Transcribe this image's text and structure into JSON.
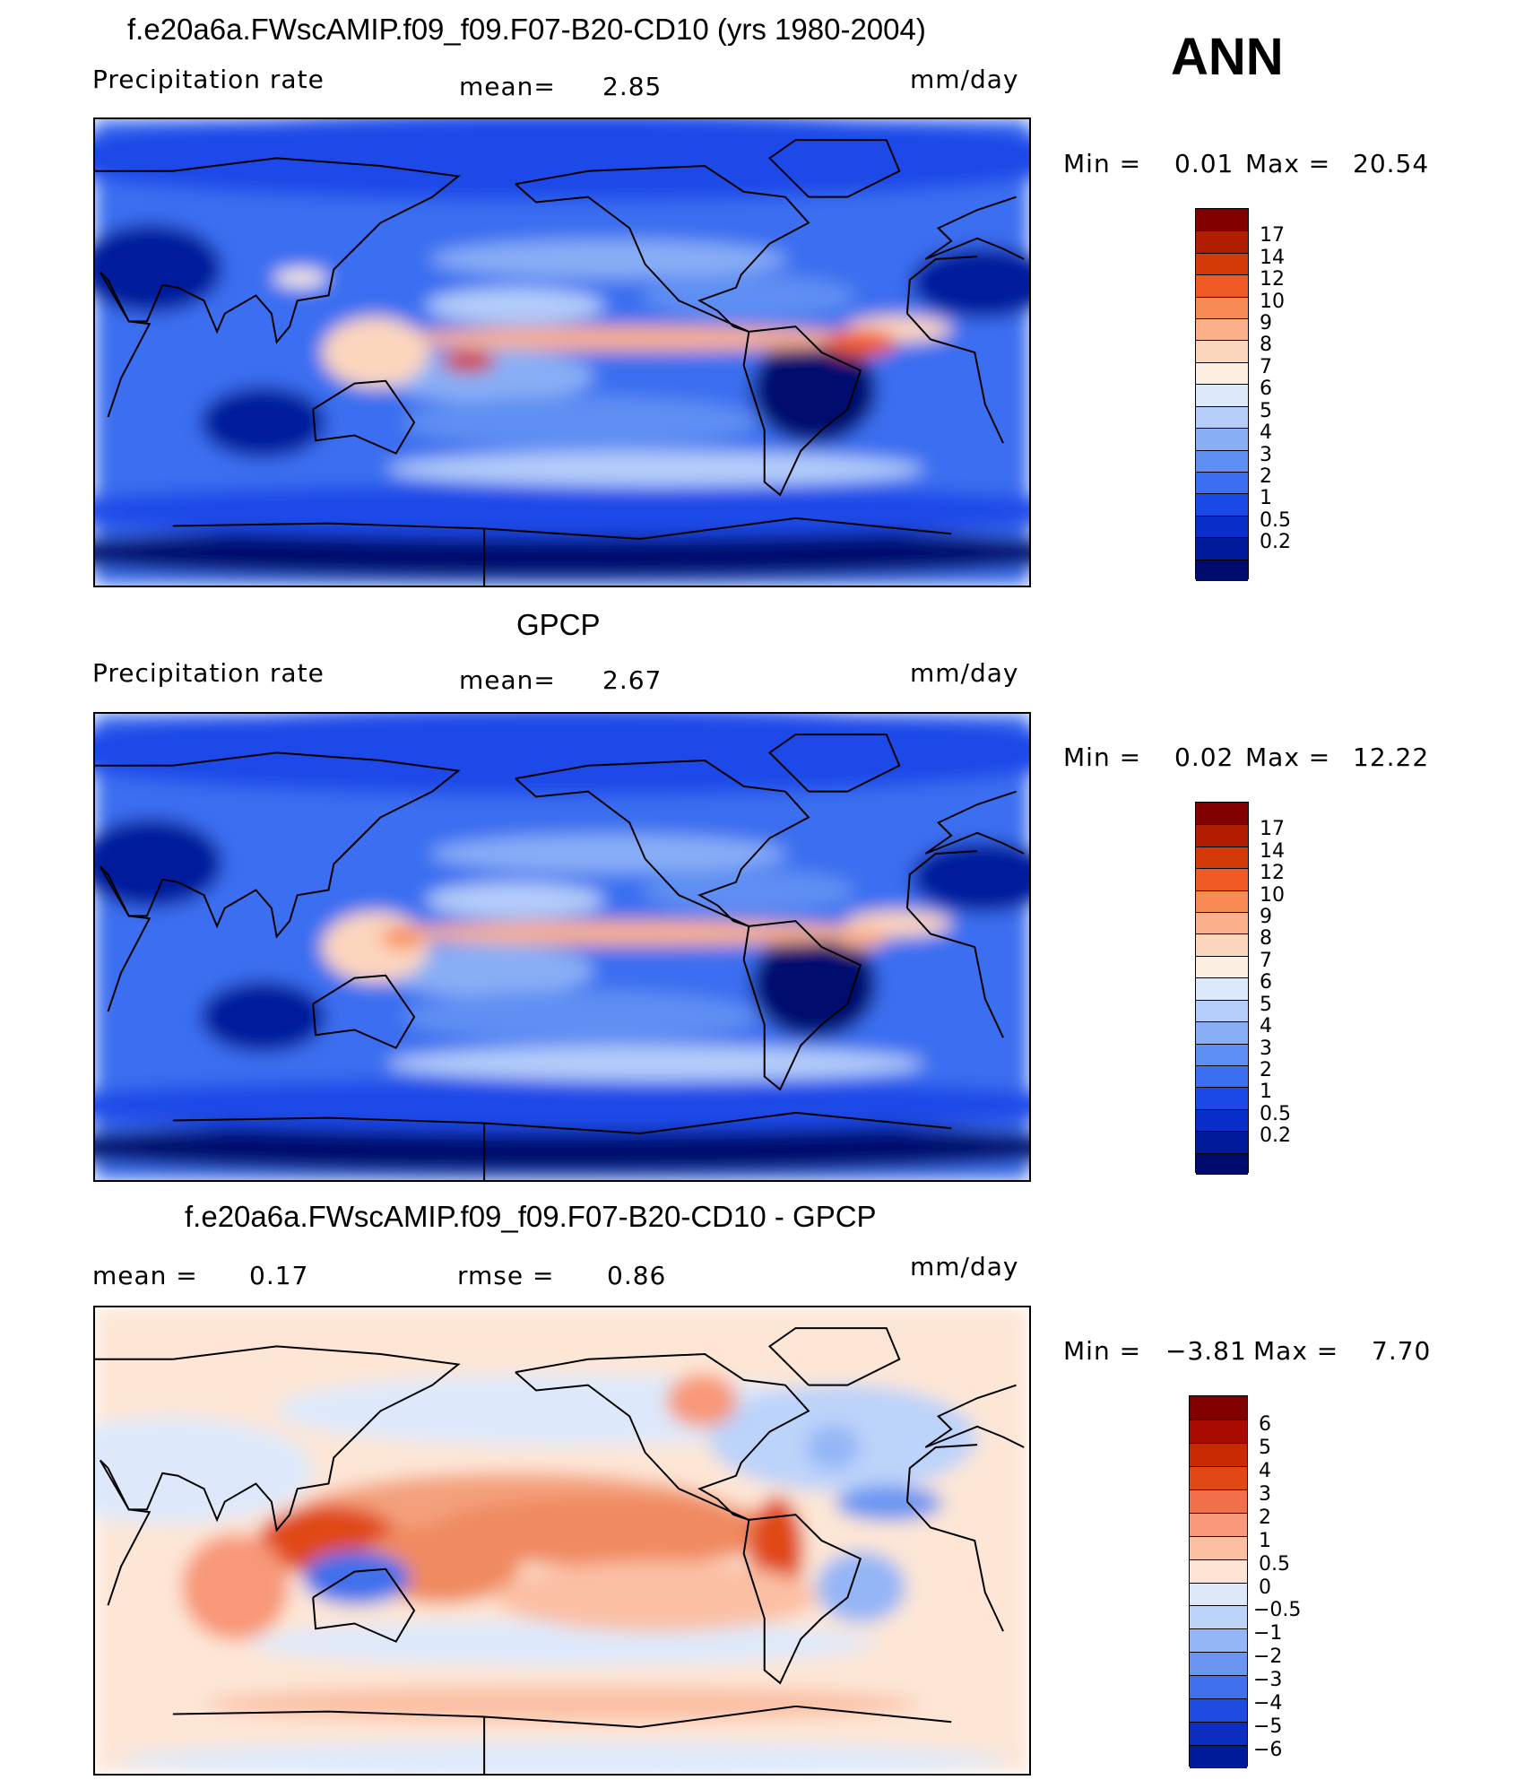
{
  "season": "ANN",
  "panels": [
    {
      "id": "model",
      "title": "f.e20a6a.FWscAMIP.f09_f09.F07-B20-CD10 (yrs 1980-2004)",
      "left_label": "Precipitation  rate",
      "mean_label": "mean=",
      "mean_value": "2.85",
      "units": "mm/day",
      "min_label": "Min  =",
      "min_value": "0.01",
      "max_label": "Max  =",
      "max_value": "20.54",
      "colorbar_labels": [
        "17",
        "14",
        "12",
        "10",
        "9",
        "8",
        "7",
        "6",
        "5",
        "4",
        "3",
        "2",
        "1",
        "0.5",
        "0.2"
      ],
      "colorbar_colors": [
        "#800000",
        "#b01d00",
        "#d43a08",
        "#f05a24",
        "#f88a55",
        "#fbb08a",
        "#fcd5bd",
        "#fdeee2",
        "#dce9fb",
        "#b4cdfa",
        "#88aef6",
        "#5e8ff3",
        "#3b6ef0",
        "#1b49e8",
        "#0a2ec9",
        "#001a9c",
        "#000b6e"
      ]
    },
    {
      "id": "obs",
      "title": "GPCP",
      "left_label": "Precipitation  rate",
      "mean_label": "mean=",
      "mean_value": "2.67",
      "units": "mm/day",
      "min_label": "Min  =",
      "min_value": "0.02",
      "max_label": "Max  =",
      "max_value": "12.22",
      "colorbar_labels": [
        "17",
        "14",
        "12",
        "10",
        "9",
        "8",
        "7",
        "6",
        "5",
        "4",
        "3",
        "2",
        "1",
        "0.5",
        "0.2"
      ],
      "colorbar_colors": [
        "#800000",
        "#b01d00",
        "#d43a08",
        "#f05a24",
        "#f88a55",
        "#fbb08a",
        "#fcd5bd",
        "#fdeee2",
        "#dce9fb",
        "#b4cdfa",
        "#88aef6",
        "#5e8ff3",
        "#3b6ef0",
        "#1b49e8",
        "#0a2ec9",
        "#001a9c",
        "#000b6e"
      ]
    },
    {
      "id": "diff",
      "title": "f.e20a6a.FWscAMIP.f09_f09.F07-B20-CD10 - GPCP",
      "mean_label": "mean  =",
      "mean_value": "0.17",
      "rmse_label": "rmse  =",
      "rmse_value": "0.86",
      "units": "mm/day",
      "min_label": "Min  =",
      "min_value": "−3.81",
      "max_label": "Max  =",
      "max_value": "7.70",
      "colorbar_labels": [
        "6",
        "5",
        "4",
        "3",
        "2",
        "1",
        "0.5",
        "0",
        "−0.5",
        "−1",
        "−2",
        "−3",
        "−4",
        "−5",
        "−6"
      ],
      "colorbar_colors": [
        "#800000",
        "#a80c00",
        "#c82a04",
        "#e04818",
        "#f0704a",
        "#f89878",
        "#fbc0a4",
        "#fde4d4",
        "#dde9fb",
        "#bcd3fa",
        "#94b6f6",
        "#6a95f1",
        "#4070ec",
        "#1e4be0",
        "#0b2fc0",
        "#001b98"
      ]
    }
  ]
}
